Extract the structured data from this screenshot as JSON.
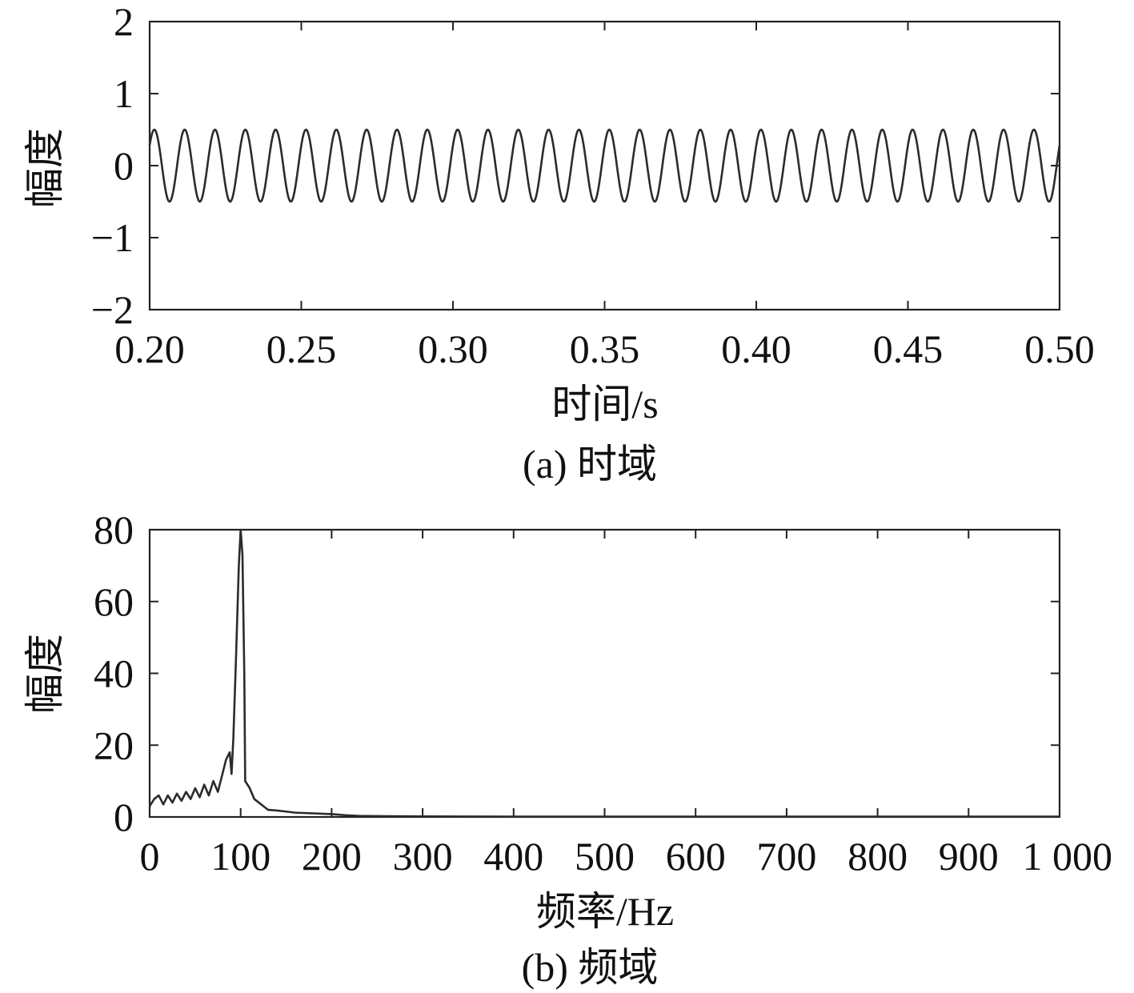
{
  "chart_data": [
    {
      "type": "line",
      "caption": "(a) 时域",
      "title": "",
      "xlabel": "时间/s",
      "ylabel": "幅度",
      "xlim": [
        0.2,
        0.5
      ],
      "ylim": [
        -2,
        2
      ],
      "xticks": [
        "0.20",
        "0.25",
        "0.30",
        "0.35",
        "0.40",
        "0.45",
        "0.50"
      ],
      "yticks": [
        "2",
        "1",
        "0",
        "−1",
        "−2"
      ],
      "grid": false,
      "legend": "none",
      "series": [
        {
          "signal": "sinusoid",
          "amplitude": 0.5,
          "frequency_hz": 100,
          "phase_rad": 0.6
        }
      ]
    },
    {
      "type": "line",
      "caption": "(b) 频域",
      "title": "",
      "xlabel": "频率/Hz",
      "ylabel": "幅度",
      "xlim": [
        0,
        1000
      ],
      "ylim": [
        0,
        80
      ],
      "xticks": [
        "0",
        "100",
        "200",
        "300",
        "400",
        "500",
        "600",
        "700",
        "800",
        "900",
        "1 000"
      ],
      "yticks": [
        "80",
        "60",
        "40",
        "20",
        "0"
      ],
      "grid": false,
      "legend": "none",
      "series": [
        {
          "x": [
            0,
            5,
            10,
            15,
            20,
            25,
            30,
            35,
            40,
            45,
            50,
            55,
            60,
            65,
            70,
            75,
            80,
            84,
            88,
            90,
            92,
            95,
            98,
            100,
            102,
            104,
            105,
            110,
            115,
            120,
            125,
            130,
            140,
            150,
            160,
            180,
            200,
            215,
            230,
            260,
            300,
            400,
            500,
            600,
            700,
            800,
            900,
            1000
          ],
          "y": [
            3,
            5,
            6,
            3.5,
            6,
            4,
            6.5,
            4.5,
            7,
            5,
            8,
            5.5,
            9,
            6,
            10,
            7,
            12,
            16,
            18,
            12,
            22,
            45,
            70,
            80,
            73,
            40,
            10,
            8,
            5,
            4,
            3,
            2,
            1.8,
            1.5,
            1.2,
            1,
            0.8,
            0.5,
            0.3,
            0.2,
            0.15,
            0.1,
            0.1,
            0.1,
            0.1,
            0.1,
            0.1,
            0.1
          ]
        }
      ]
    }
  ]
}
